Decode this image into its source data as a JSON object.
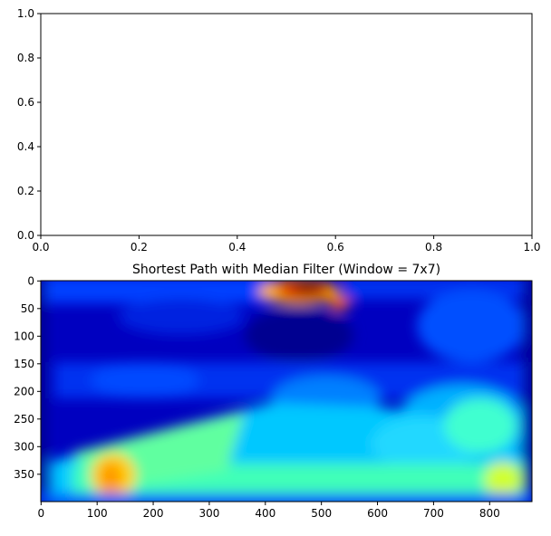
{
  "chart_data": [
    {
      "type": "empty",
      "xlim": [
        0,
        1
      ],
      "ylim": [
        0,
        1
      ],
      "xticks": [
        {
          "value": 0,
          "label": "0.0"
        },
        {
          "value": 0.2,
          "label": "0.2"
        },
        {
          "value": 0.4,
          "label": "0.4"
        },
        {
          "value": 0.6,
          "label": "0.6"
        },
        {
          "value": 0.8,
          "label": "0.8"
        },
        {
          "value": 1,
          "label": "1.0"
        }
      ],
      "yticks": [
        {
          "value": 0,
          "label": "0.0"
        },
        {
          "value": 0.2,
          "label": "0.2"
        },
        {
          "value": 0.4,
          "label": "0.4"
        },
        {
          "value": 0.6,
          "label": "0.6"
        },
        {
          "value": 0.8,
          "label": "0.8"
        },
        {
          "value": 1,
          "label": "1.0"
        }
      ]
    },
    {
      "type": "image",
      "title": "Shortest Path with Median Filter (Window = 7x7)",
      "colormap": "jet",
      "xlim": [
        -0.5,
        875.5
      ],
      "ylim": [
        399.5,
        -0.5
      ],
      "xticks": [
        0,
        100,
        200,
        300,
        400,
        500,
        600,
        700,
        800
      ],
      "yticks": [
        0,
        50,
        100,
        150,
        200,
        250,
        300,
        350
      ]
    }
  ]
}
